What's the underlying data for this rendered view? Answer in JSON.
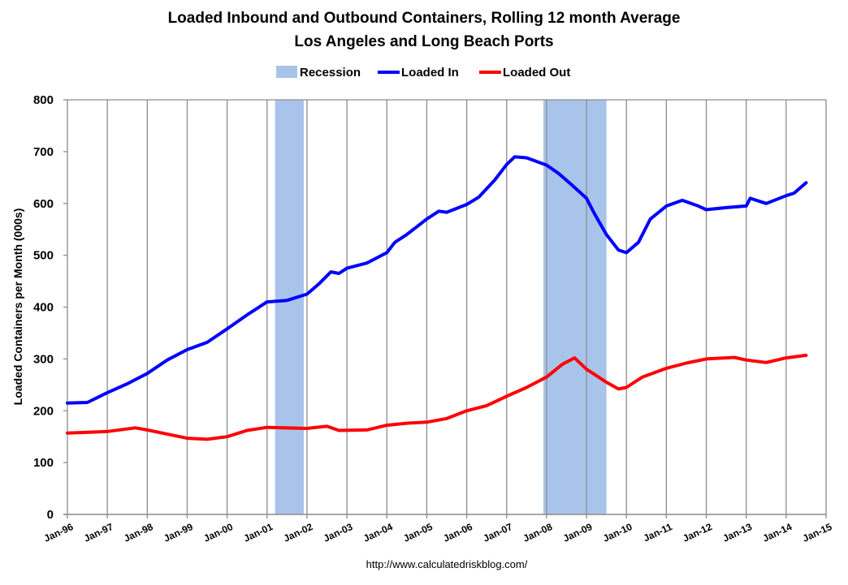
{
  "chart_data": {
    "type": "line",
    "title": "Loaded Inbound and Outbound Containers, Rolling 12 month Average",
    "subtitle": "Los Angeles and Long Beach Ports",
    "xlabel": "",
    "ylabel": "Loaded Containers per Month (000s)",
    "ylim": [
      0,
      800
    ],
    "yticks": [
      0,
      100,
      200,
      300,
      400,
      500,
      600,
      700,
      800
    ],
    "xlim": [
      1996,
      2015
    ],
    "xtick_labels": [
      "Jan-96",
      "Jan-97",
      "Jan-98",
      "Jan-99",
      "Jan-00",
      "Jan-01",
      "Jan-02",
      "Jan-03",
      "Jan-04",
      "Jan-05",
      "Jan-06",
      "Jan-07",
      "Jan-08",
      "Jan-09",
      "Jan-10",
      "Jan-11",
      "Jan-12",
      "Jan-13",
      "Jan-14",
      "Jan-15"
    ],
    "grid": true,
    "legend_position": "top-center",
    "source": "http://www.calculatedriskblog.com/",
    "recessions": {
      "name": "Recession",
      "color": "#a9c4ea",
      "periods": [
        [
          2001.2,
          2001.92
        ],
        [
          2007.92,
          2009.5
        ]
      ]
    },
    "series": [
      {
        "name": "Loaded In",
        "color": "#0000ff",
        "x": [
          1996,
          1996.5,
          1997,
          1997.5,
          1998,
          1998.5,
          1999,
          1999.5,
          2000,
          2000.5,
          2001,
          2001.5,
          2002,
          2002.3,
          2002.6,
          2002.8,
          2003,
          2003.5,
          2004,
          2004.2,
          2004.5,
          2005,
          2005.3,
          2005.5,
          2006,
          2006.3,
          2006.7,
          2007,
          2007.2,
          2007.5,
          2008,
          2008.3,
          2008.6,
          2009,
          2009.2,
          2009.5,
          2009.8,
          2010,
          2010.3,
          2010.6,
          2011,
          2011.4,
          2011.8,
          2012,
          2012.5,
          2013,
          2013.1,
          2013.5,
          2014,
          2014.2,
          2014.5
        ],
        "values": [
          215,
          216,
          235,
          252,
          272,
          298,
          318,
          332,
          358,
          385,
          410,
          413,
          425,
          445,
          468,
          465,
          475,
          485,
          505,
          525,
          540,
          570,
          585,
          583,
          598,
          612,
          645,
          675,
          690,
          688,
          674,
          658,
          638,
          610,
          580,
          540,
          510,
          505,
          525,
          570,
          595,
          606,
          595,
          588,
          592,
          595,
          610,
          600,
          615,
          620,
          640
        ]
      },
      {
        "name": "Loaded Out",
        "color": "#ff0000",
        "x": [
          1996,
          1997,
          1997.7,
          1998,
          1999,
          1999.5,
          2000,
          2000.5,
          2001,
          2002,
          2002.5,
          2002.8,
          2003.5,
          2004,
          2004.5,
          2005,
          2005.5,
          2006,
          2006.5,
          2007,
          2007.5,
          2008,
          2008.4,
          2008.7,
          2009,
          2009.5,
          2009.8,
          2010,
          2010.4,
          2011,
          2011.5,
          2012,
          2012.7,
          2013,
          2013.5,
          2014,
          2014.5
        ],
        "values": [
          157,
          160,
          167,
          163,
          147,
          145,
          150,
          162,
          168,
          166,
          170,
          162,
          163,
          172,
          176,
          178,
          185,
          200,
          210,
          228,
          245,
          265,
          290,
          302,
          280,
          255,
          242,
          245,
          265,
          282,
          292,
          300,
          303,
          298,
          293,
          302,
          307
        ]
      }
    ]
  }
}
